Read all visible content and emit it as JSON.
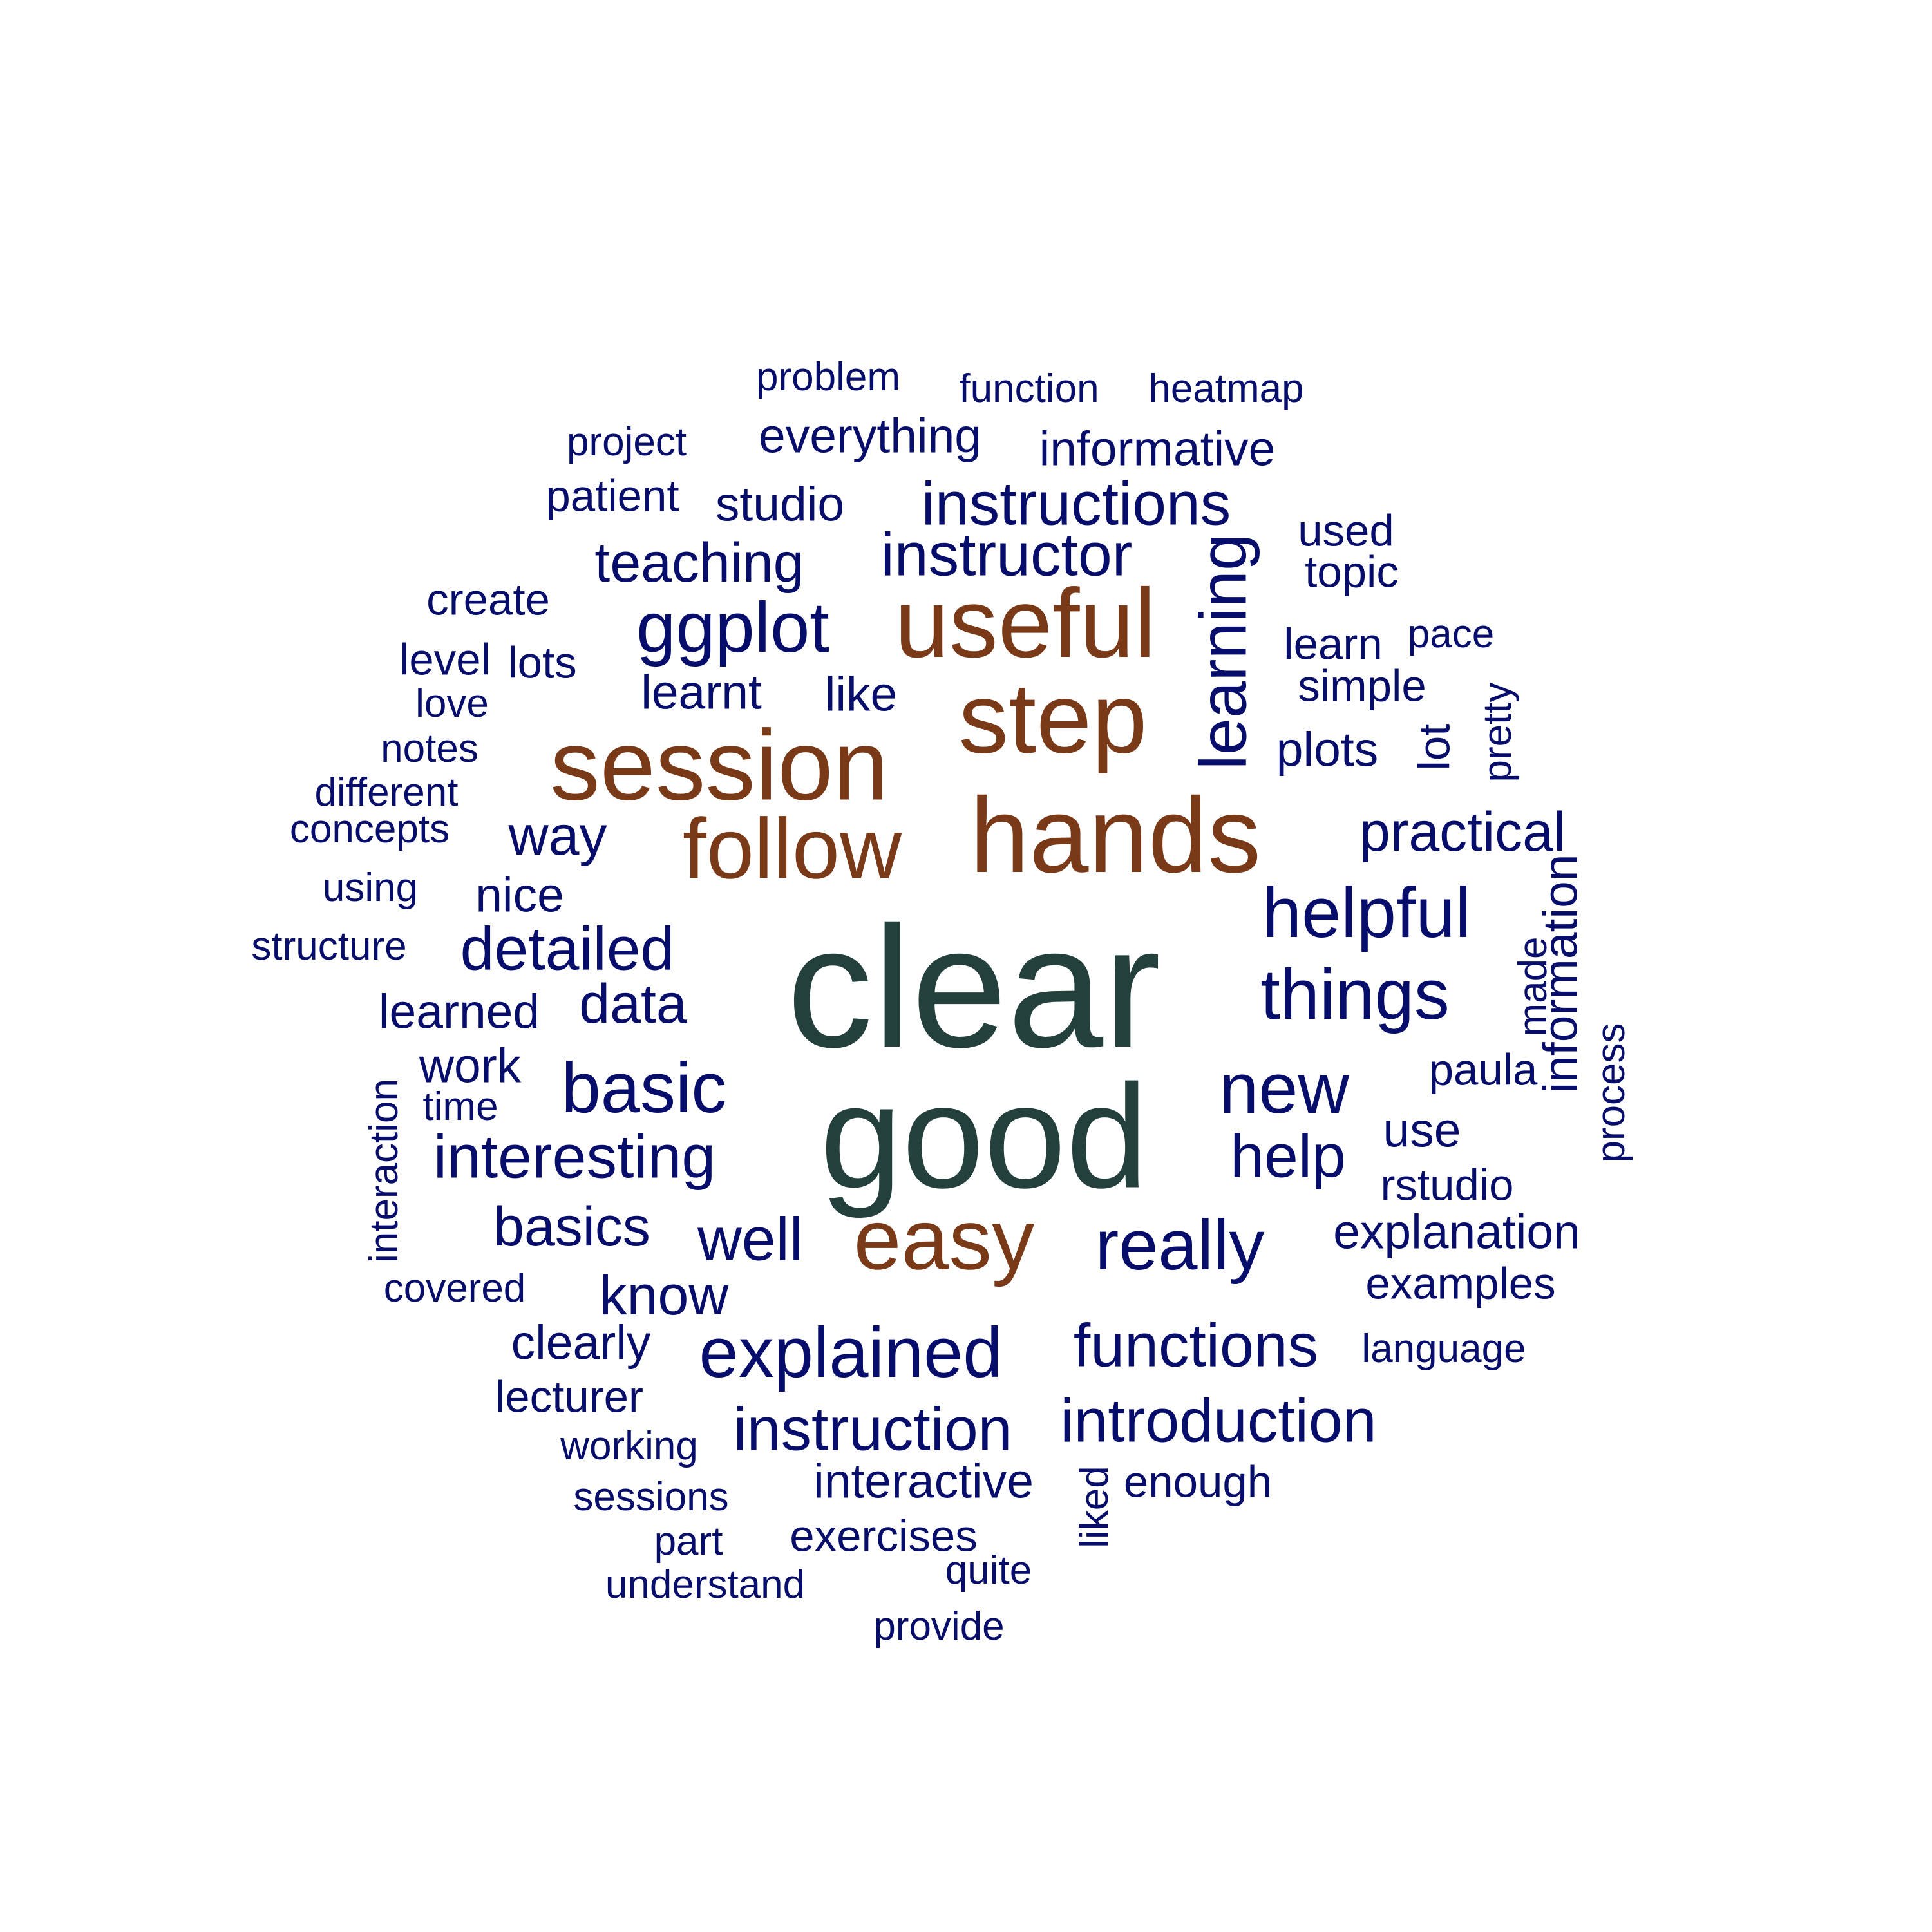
{
  "colors": {
    "background": "#ffffff",
    "top_tier": "#23403D",
    "mid_tier": "#7A3A18",
    "low_tier": "#070D6B"
  },
  "word_cloud": {
    "words": [
      {
        "text": "clear",
        "tier": "top_tier",
        "orientation": "horizontal"
      },
      {
        "text": "good",
        "tier": "top_tier",
        "orientation": "horizontal"
      },
      {
        "text": "hands",
        "tier": "mid_tier",
        "orientation": "horizontal"
      },
      {
        "text": "session",
        "tier": "mid_tier",
        "orientation": "horizontal"
      },
      {
        "text": "step",
        "tier": "mid_tier",
        "orientation": "horizontal"
      },
      {
        "text": "useful",
        "tier": "mid_tier",
        "orientation": "horizontal"
      },
      {
        "text": "follow",
        "tier": "mid_tier",
        "orientation": "horizontal"
      },
      {
        "text": "easy",
        "tier": "mid_tier",
        "orientation": "horizontal"
      },
      {
        "text": "problem",
        "tier": "low_tier",
        "orientation": "horizontal"
      },
      {
        "text": "function",
        "tier": "low_tier",
        "orientation": "horizontal"
      },
      {
        "text": "heatmap",
        "tier": "low_tier",
        "orientation": "horizontal"
      },
      {
        "text": "project",
        "tier": "low_tier",
        "orientation": "horizontal"
      },
      {
        "text": "everything",
        "tier": "low_tier",
        "orientation": "horizontal"
      },
      {
        "text": "informative",
        "tier": "low_tier",
        "orientation": "horizontal"
      },
      {
        "text": "patient",
        "tier": "low_tier",
        "orientation": "horizontal"
      },
      {
        "text": "studio",
        "tier": "low_tier",
        "orientation": "horizontal"
      },
      {
        "text": "instructions",
        "tier": "low_tier",
        "orientation": "horizontal"
      },
      {
        "text": "used",
        "tier": "low_tier",
        "orientation": "horizontal"
      },
      {
        "text": "teaching",
        "tier": "low_tier",
        "orientation": "horizontal"
      },
      {
        "text": "instructor",
        "tier": "low_tier",
        "orientation": "horizontal"
      },
      {
        "text": "topic",
        "tier": "low_tier",
        "orientation": "horizontal"
      },
      {
        "text": "create",
        "tier": "low_tier",
        "orientation": "horizontal"
      },
      {
        "text": "ggplot",
        "tier": "low_tier",
        "orientation": "horizontal"
      },
      {
        "text": "learning",
        "tier": "low_tier",
        "orientation": "vertical"
      },
      {
        "text": "learn",
        "tier": "low_tier",
        "orientation": "horizontal"
      },
      {
        "text": "pace",
        "tier": "low_tier",
        "orientation": "horizontal"
      },
      {
        "text": "level",
        "tier": "low_tier",
        "orientation": "horizontal"
      },
      {
        "text": "lots",
        "tier": "low_tier",
        "orientation": "horizontal"
      },
      {
        "text": "simple",
        "tier": "low_tier",
        "orientation": "horizontal"
      },
      {
        "text": "learnt",
        "tier": "low_tier",
        "orientation": "horizontal"
      },
      {
        "text": "like",
        "tier": "low_tier",
        "orientation": "horizontal"
      },
      {
        "text": "love",
        "tier": "low_tier",
        "orientation": "horizontal"
      },
      {
        "text": "pretty",
        "tier": "low_tier",
        "orientation": "vertical"
      },
      {
        "text": "notes",
        "tier": "low_tier",
        "orientation": "horizontal"
      },
      {
        "text": "plots",
        "tier": "low_tier",
        "orientation": "horizontal"
      },
      {
        "text": "lot",
        "tier": "low_tier",
        "orientation": "vertical"
      },
      {
        "text": "different",
        "tier": "low_tier",
        "orientation": "horizontal"
      },
      {
        "text": "concepts",
        "tier": "low_tier",
        "orientation": "horizontal"
      },
      {
        "text": "way",
        "tier": "low_tier",
        "orientation": "horizontal"
      },
      {
        "text": "practical",
        "tier": "low_tier",
        "orientation": "horizontal"
      },
      {
        "text": "using",
        "tier": "low_tier",
        "orientation": "horizontal"
      },
      {
        "text": "nice",
        "tier": "low_tier",
        "orientation": "horizontal"
      },
      {
        "text": "helpful",
        "tier": "low_tier",
        "orientation": "horizontal"
      },
      {
        "text": "information",
        "tier": "low_tier",
        "orientation": "vertical"
      },
      {
        "text": "made",
        "tier": "low_tier",
        "orientation": "vertical"
      },
      {
        "text": "structure",
        "tier": "low_tier",
        "orientation": "horizontal"
      },
      {
        "text": "detailed",
        "tier": "low_tier",
        "orientation": "horizontal"
      },
      {
        "text": "things",
        "tier": "low_tier",
        "orientation": "horizontal"
      },
      {
        "text": "learned",
        "tier": "low_tier",
        "orientation": "horizontal"
      },
      {
        "text": "data",
        "tier": "low_tier",
        "orientation": "horizontal"
      },
      {
        "text": "process",
        "tier": "low_tier",
        "orientation": "vertical"
      },
      {
        "text": "work",
        "tier": "low_tier",
        "orientation": "horizontal"
      },
      {
        "text": "paula",
        "tier": "low_tier",
        "orientation": "horizontal"
      },
      {
        "text": "interaction",
        "tier": "low_tier",
        "orientation": "vertical"
      },
      {
        "text": "time",
        "tier": "low_tier",
        "orientation": "horizontal"
      },
      {
        "text": "basic",
        "tier": "low_tier",
        "orientation": "horizontal"
      },
      {
        "text": "new",
        "tier": "low_tier",
        "orientation": "horizontal"
      },
      {
        "text": "use",
        "tier": "low_tier",
        "orientation": "horizontal"
      },
      {
        "text": "interesting",
        "tier": "low_tier",
        "orientation": "horizontal"
      },
      {
        "text": "help",
        "tier": "low_tier",
        "orientation": "horizontal"
      },
      {
        "text": "rstudio",
        "tier": "low_tier",
        "orientation": "horizontal"
      },
      {
        "text": "basics",
        "tier": "low_tier",
        "orientation": "horizontal"
      },
      {
        "text": "well",
        "tier": "low_tier",
        "orientation": "horizontal"
      },
      {
        "text": "really",
        "tier": "low_tier",
        "orientation": "horizontal"
      },
      {
        "text": "explanation",
        "tier": "low_tier",
        "orientation": "horizontal"
      },
      {
        "text": "covered",
        "tier": "low_tier",
        "orientation": "horizontal"
      },
      {
        "text": "know",
        "tier": "low_tier",
        "orientation": "horizontal"
      },
      {
        "text": "examples",
        "tier": "low_tier",
        "orientation": "horizontal"
      },
      {
        "text": "clearly",
        "tier": "low_tier",
        "orientation": "horizontal"
      },
      {
        "text": "explained",
        "tier": "low_tier",
        "orientation": "horizontal"
      },
      {
        "text": "functions",
        "tier": "low_tier",
        "orientation": "horizontal"
      },
      {
        "text": "language",
        "tier": "low_tier",
        "orientation": "horizontal"
      },
      {
        "text": "lecturer",
        "tier": "low_tier",
        "orientation": "horizontal"
      },
      {
        "text": "instruction",
        "tier": "low_tier",
        "orientation": "horizontal"
      },
      {
        "text": "introduction",
        "tier": "low_tier",
        "orientation": "horizontal"
      },
      {
        "text": "working",
        "tier": "low_tier",
        "orientation": "horizontal"
      },
      {
        "text": "interactive",
        "tier": "low_tier",
        "orientation": "horizontal"
      },
      {
        "text": "liked",
        "tier": "low_tier",
        "orientation": "vertical"
      },
      {
        "text": "enough",
        "tier": "low_tier",
        "orientation": "horizontal"
      },
      {
        "text": "sessions",
        "tier": "low_tier",
        "orientation": "horizontal"
      },
      {
        "text": "exercises",
        "tier": "low_tier",
        "orientation": "horizontal"
      },
      {
        "text": "part",
        "tier": "low_tier",
        "orientation": "horizontal"
      },
      {
        "text": "quite",
        "tier": "low_tier",
        "orientation": "horizontal"
      },
      {
        "text": "understand",
        "tier": "low_tier",
        "orientation": "horizontal"
      },
      {
        "text": "provide",
        "tier": "low_tier",
        "orientation": "horizontal"
      }
    ]
  }
}
